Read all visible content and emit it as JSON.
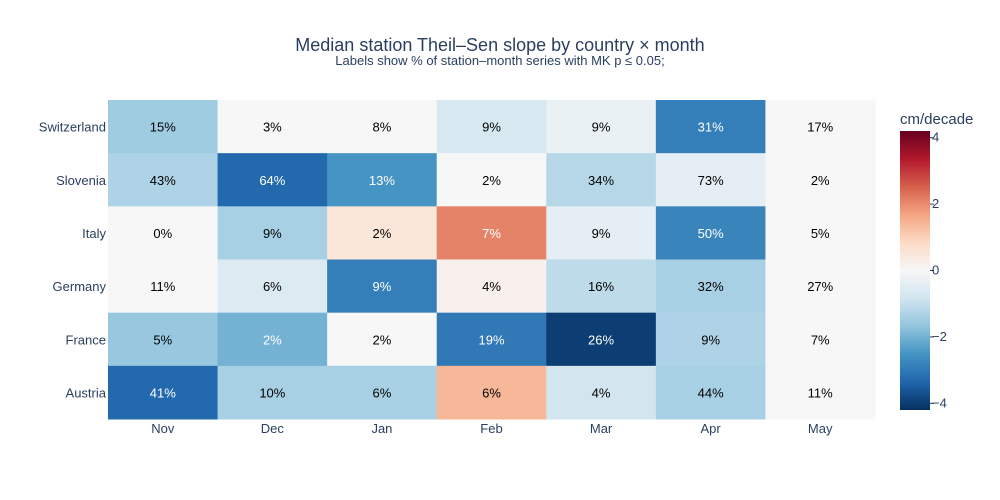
{
  "chart_data": {
    "type": "heatmap",
    "title": "Median station Theil–Sen slope by country × month",
    "subtitle": "Labels show % of station–month series with MK p ≤ 0.05;",
    "x_categories": [
      "Nov",
      "Dec",
      "Jan",
      "Feb",
      "Mar",
      "Apr",
      "May"
    ],
    "y_categories": [
      "Switzerland",
      "Slovenia",
      "Italy",
      "Germany",
      "France",
      "Austria"
    ],
    "z": [
      [
        -1.5,
        0.0,
        0.0,
        -0.7,
        -0.3,
        -2.9,
        0.0
      ],
      [
        -1.3,
        -3.3,
        -2.5,
        0.0,
        -1.2,
        -0.4,
        0.0
      ],
      [
        0.0,
        -1.4,
        0.5,
        2.1,
        -0.4,
        -2.8,
        0.0
      ],
      [
        0.0,
        -0.6,
        -2.9,
        0.2,
        -1.1,
        -1.4,
        0.0
      ],
      [
        -1.6,
        -2.0,
        0.0,
        -3.0,
        -4.0,
        -1.3,
        0.0
      ],
      [
        -3.3,
        -1.4,
        -1.4,
        1.4,
        -0.8,
        -1.4,
        0.0
      ]
    ],
    "labels": [
      [
        "15%",
        "3%",
        "8%",
        "9%",
        "9%",
        "31%",
        "17%"
      ],
      [
        "43%",
        "64%",
        "13%",
        "2%",
        "34%",
        "73%",
        "2%"
      ],
      [
        "0%",
        "9%",
        "2%",
        "7%",
        "9%",
        "50%",
        "5%"
      ],
      [
        "11%",
        "6%",
        "9%",
        "4%",
        "16%",
        "32%",
        "27%"
      ],
      [
        "5%",
        "2%",
        "2%",
        "19%",
        "26%",
        "9%",
        "7%"
      ],
      [
        "41%",
        "10%",
        "6%",
        "6%",
        "4%",
        "44%",
        "11%"
      ]
    ],
    "colorbar": {
      "title": "cm/decade",
      "range": [
        -4.2,
        4.2
      ],
      "ticks": [
        4,
        2,
        0,
        -2,
        -4
      ],
      "tick_labels": [
        "4",
        "2",
        "0",
        "−2",
        "−4"
      ],
      "colorscale": "RdBu"
    }
  }
}
